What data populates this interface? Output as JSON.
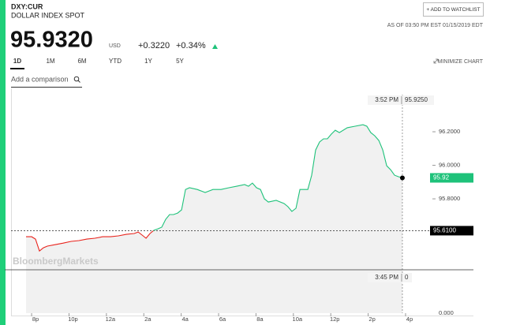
{
  "symbol": "DXY:CUR",
  "name": "DOLLAR INDEX SPOT",
  "price": "95.9320",
  "currency": "USD",
  "change": "+0.3220",
  "change_percent": "+0.34%",
  "watchlist_button": "+ ADD TO WATCHLIST",
  "as_of": "AS OF 03:50 PM EST 01/15/2019 EDT",
  "tabs": [
    "1D",
    "1M",
    "6M",
    "YTD",
    "1Y",
    "5Y"
  ],
  "active_tab": 0,
  "minimize": "MINIMIZE CHART",
  "comparison_placeholder": "Add a comparison",
  "watermark": "BloombergMarkets",
  "chart_data": {
    "type": "line",
    "color_above": "#1ec27a",
    "color_below": "#e8231c",
    "x": [
      -4.3,
      -4.0,
      -3.79,
      -3.58,
      -3.37,
      -3.16,
      -2.73,
      -2.31,
      -1.89,
      -1.47,
      -1.05,
      -0.62,
      -0.2,
      0.22,
      0.64,
      1.06,
      1.49,
      1.7,
      1.91,
      2.12,
      2.33,
      2.54,
      2.75,
      2.96,
      3.17,
      3.38,
      3.59,
      3.81,
      4.02,
      4.23,
      4.44,
      4.86,
      5.28,
      5.49,
      5.7,
      6.13,
      6.55,
      6.97,
      7.39,
      7.6,
      7.81,
      8.03,
      8.24,
      8.45,
      8.66,
      9.08,
      9.5,
      9.71,
      9.92,
      10.14,
      10.35,
      10.77,
      10.98,
      11.19,
      11.4,
      11.61,
      11.82,
      12.03,
      12.24,
      12.46,
      12.88,
      13.3,
      13.72,
      13.93,
      14.14,
      14.35,
      14.57,
      14.78,
      14.99,
      15.2,
      15.41,
      15.62,
      15.83
    ],
    "values": [
      95.574,
      95.574,
      95.56,
      95.489,
      95.508,
      95.518,
      95.527,
      95.536,
      95.546,
      95.551,
      95.56,
      95.565,
      95.574,
      95.574,
      95.579,
      95.588,
      95.593,
      95.602,
      95.584,
      95.565,
      95.593,
      95.612,
      95.621,
      95.631,
      95.678,
      95.706,
      95.706,
      95.715,
      95.734,
      95.856,
      95.866,
      95.856,
      95.838,
      95.847,
      95.856,
      95.856,
      95.866,
      95.875,
      95.885,
      95.875,
      95.894,
      95.866,
      95.856,
      95.8,
      95.781,
      95.791,
      95.772,
      95.753,
      95.725,
      95.744,
      95.856,
      95.856,
      95.941,
      96.091,
      96.139,
      96.158,
      96.158,
      96.186,
      96.209,
      96.195,
      96.224,
      96.233,
      96.242,
      96.233,
      96.195,
      96.176,
      96.148,
      96.091,
      95.997,
      95.974,
      95.941,
      95.932,
      95.925
    ],
    "xlim": [
      -5.1,
      19.63
    ],
    "ylim": [
      95.118,
      96.459
    ],
    "xticks": [
      {
        "value": -4,
        "label": "8p"
      },
      {
        "value": -2,
        "label": "10p"
      },
      {
        "value": 0,
        "label": "12a"
      },
      {
        "value": 2,
        "label": "2a"
      },
      {
        "value": 4,
        "label": "4a"
      },
      {
        "value": 6,
        "label": "6a"
      },
      {
        "value": 8,
        "label": "8a"
      },
      {
        "value": 10,
        "label": "10a"
      },
      {
        "value": 12,
        "label": "12p"
      },
      {
        "value": 14,
        "label": "2p"
      },
      {
        "value": 16,
        "label": "4p"
      }
    ],
    "yticks": [
      {
        "value": 95.8,
        "label": "95.8000"
      },
      {
        "value": 96.0,
        "label": "96.0000"
      },
      {
        "value": 96.2,
        "label": "96.2000"
      }
    ],
    "volume_axis_label": "0.000",
    "previous_close": {
      "value": 95.61,
      "label": "95.6100"
    },
    "last_value_label": "95.92",
    "crosshair": {
      "time": "3:52 PM",
      "value": {
        "value": 95.925,
        "label": "95.9250"
      }
    },
    "volume_crosshair": {
      "time": "3:45 PM",
      "value": 0
    }
  }
}
